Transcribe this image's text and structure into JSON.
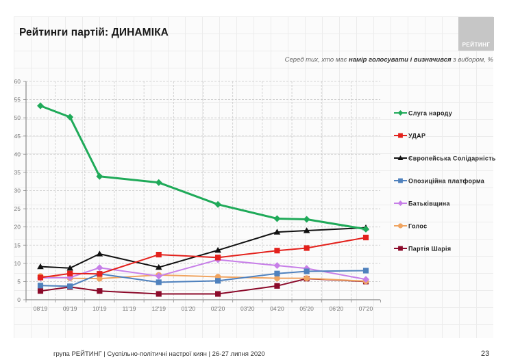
{
  "header": {
    "title": "Рейтинги партій: ДИНАМІКА",
    "logo_text": "РЕЙТИНГ",
    "subtitle_pre": "Серед тих, хто має ",
    "subtitle_bold": "намір голосувати і визначився",
    "subtitle_post": " з вибором, %"
  },
  "footer": {
    "text": "група РЕЙТИНГ  | Суспільно-політичні настрої киян | 26-27 липня 2020",
    "page_number": "23"
  },
  "chart_data": {
    "type": "line",
    "title": "Рейтинги партій: ДИНАМІКА",
    "xlabel": "",
    "ylabel": "",
    "ylim": [
      0,
      60
    ],
    "yticks": [
      0,
      5,
      10,
      15,
      20,
      25,
      30,
      35,
      40,
      45,
      50,
      55,
      60
    ],
    "grid": true,
    "legend_position": "right",
    "categories": [
      "08'19",
      "09'19",
      "10'19",
      "11'19",
      "12'19",
      "01'20",
      "02'20",
      "03'20",
      "04'20",
      "05'20",
      "06'20",
      "07'20"
    ],
    "series": [
      {
        "name": "Слуга народу",
        "color": "#1faa59",
        "marker": "diamond",
        "values": [
          53.3,
          50.2,
          33.9,
          null,
          32.2,
          null,
          26.2,
          null,
          22.3,
          22.1,
          null,
          19.4
        ]
      },
      {
        "name": "УДАР",
        "color": "#e3211c",
        "marker": "square",
        "values": [
          6.1,
          7.2,
          7.1,
          null,
          12.4,
          null,
          11.6,
          null,
          13.5,
          14.2,
          null,
          17.1
        ]
      },
      {
        "name": "Європейська Солідарність",
        "color": "#111111",
        "marker": "triangle",
        "values": [
          9.1,
          8.7,
          12.6,
          null,
          8.9,
          null,
          13.6,
          null,
          18.6,
          19.0,
          null,
          19.8
        ]
      },
      {
        "name": "Опозиційна платформа",
        "color": "#4f81bd",
        "marker": "square",
        "values": [
          3.9,
          3.7,
          7.1,
          null,
          4.8,
          null,
          5.2,
          null,
          7.2,
          7.8,
          null,
          8.0
        ]
      },
      {
        "name": "Батьківщина",
        "color": "#c77fe8",
        "marker": "diamond",
        "values": [
          6.0,
          6.1,
          8.8,
          null,
          6.5,
          null,
          11.0,
          null,
          9.4,
          8.6,
          null,
          5.6
        ]
      },
      {
        "name": "Голос",
        "color": "#f0a460",
        "marker": "circle",
        "values": [
          6.5,
          5.9,
          5.8,
          null,
          6.8,
          null,
          6.3,
          null,
          5.9,
          5.9,
          null,
          5.1
        ]
      },
      {
        "name": "Партія Шарія",
        "color": "#8b0a2a",
        "marker": "square",
        "values": [
          2.4,
          3.5,
          2.4,
          null,
          1.6,
          null,
          1.6,
          null,
          3.8,
          5.8,
          null,
          5.0
        ]
      }
    ]
  }
}
